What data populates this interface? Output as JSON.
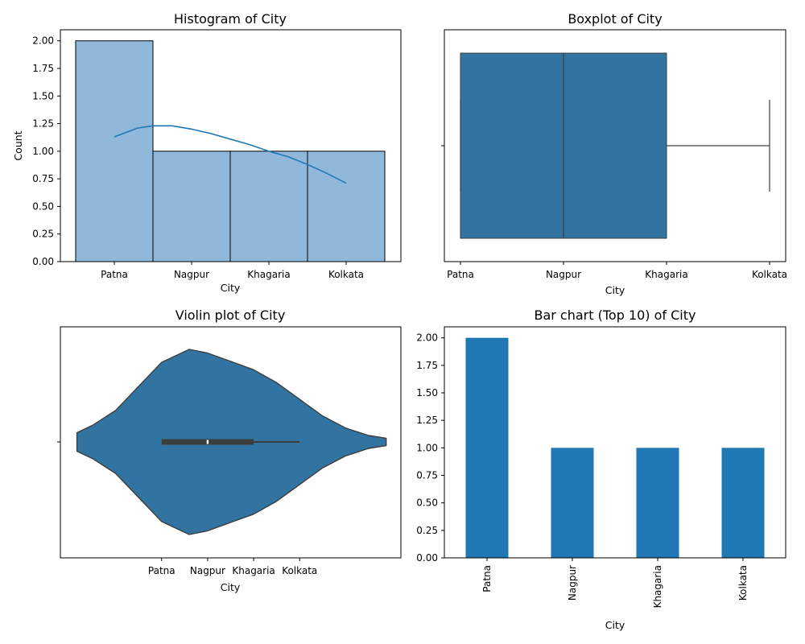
{
  "chart_data": [
    {
      "type": "histogram",
      "title": "Histogram of City",
      "xlabel": "City",
      "ylabel": "Count",
      "categories": [
        "Patna",
        "Nagpur",
        "Khagaria",
        "Kolkata"
      ],
      "values": [
        2,
        1,
        1,
        1
      ],
      "ylim": [
        0,
        2.1
      ],
      "yticks": [
        "0.00",
        "0.25",
        "0.50",
        "0.75",
        "1.00",
        "1.25",
        "1.50",
        "1.75",
        "2.00"
      ],
      "kde": {
        "x": [
          0.5,
          0.8,
          1.0,
          1.25,
          1.5,
          1.75,
          2.0,
          2.25,
          2.5,
          2.75,
          3.0,
          3.25,
          3.5
        ],
        "y": [
          1.13,
          1.21,
          1.23,
          1.23,
          1.2,
          1.16,
          1.11,
          1.06,
          1.0,
          0.95,
          0.88,
          0.8,
          0.71
        ]
      },
      "colors": {
        "fill": "#8fb8da",
        "kde": "#1f77b4"
      }
    },
    {
      "type": "boxplot",
      "title": "Boxplot of City",
      "xlabel": "City",
      "categories": [
        "Patna",
        "Nagpur",
        "Khagaria",
        "Kolkata"
      ],
      "min": 0,
      "q1": 0,
      "median": 1,
      "q3": 2,
      "max": 3,
      "colors": {
        "box": "#3274a1",
        "line": "#3d3d3d"
      }
    },
    {
      "type": "violin",
      "title": "Violin plot of City",
      "xlabel": "City",
      "categories": [
        "Patna",
        "Nagpur",
        "Khagaria",
        "Kolkata"
      ],
      "xlim": [
        -2.2,
        5.2
      ],
      "q1": 0,
      "median": 1,
      "q3": 2,
      "whisker_min": 0,
      "whisker_max": 3,
      "density": {
        "x": [
          -1.84,
          -1.5,
          -1.0,
          -0.5,
          0.0,
          0.6,
          1.0,
          1.5,
          2.0,
          2.5,
          3.0,
          3.5,
          4.0,
          4.5,
          4.88
        ],
        "half_width": [
          0.1,
          0.18,
          0.34,
          0.6,
          0.86,
          1.0,
          0.96,
          0.87,
          0.78,
          0.64,
          0.46,
          0.28,
          0.15,
          0.07,
          0.04
        ]
      },
      "colors": {
        "fill": "#3274a1",
        "line": "#3d3d3d"
      }
    },
    {
      "type": "bar",
      "title": "Bar chart (Top 10) of City",
      "xlabel": "City",
      "categories": [
        "Patna",
        "Nagpur",
        "Khagaria",
        "Kolkata"
      ],
      "values": [
        2,
        1,
        1,
        1
      ],
      "ylim": [
        0,
        2.1
      ],
      "yticks": [
        "0.00",
        "0.25",
        "0.50",
        "0.75",
        "1.00",
        "1.25",
        "1.50",
        "1.75",
        "2.00"
      ],
      "colors": {
        "bar": "#1f77b4"
      }
    }
  ]
}
